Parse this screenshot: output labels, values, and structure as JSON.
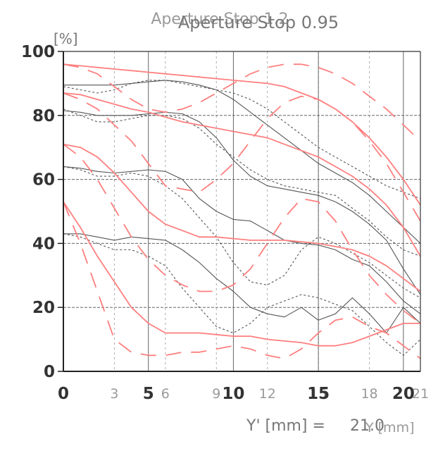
{
  "chart_data": {
    "type": "line",
    "title": "Aperture Stop 0.95",
    "title_overlay": "Aperture Stop 1.2",
    "ylabel": "[%]",
    "xlabel_prefix": "Y' [mm] =",
    "xlabel_value": "21.0",
    "xlabel_unit_overlay": "Y [mm]",
    "xlim": [
      0,
      21
    ],
    "ylim": [
      0,
      100
    ],
    "grid": true,
    "x_ticks_major": [
      0,
      5,
      10,
      15,
      20
    ],
    "x_ticks_minor": [
      3,
      6,
      9,
      12,
      15,
      18,
      21
    ],
    "y_ticks": [
      0,
      20,
      40,
      60,
      80,
      100
    ],
    "colors": {
      "primary": "#555555",
      "secondary": "#ff7f7f",
      "grid": "#666666",
      "minor_grid": "#aaaaaa"
    },
    "series": [
      {
        "group": "primary",
        "style": "solid",
        "x": [
          0,
          1,
          2,
          3,
          4,
          5,
          6,
          7,
          8,
          9,
          10,
          11,
          12,
          13,
          14,
          15,
          16,
          17,
          18,
          19,
          20,
          21
        ],
        "y": [
          89.5,
          89.5,
          89.5,
          89.5,
          90,
          90.5,
          91,
          90.5,
          89.5,
          88,
          85,
          81,
          77,
          73,
          69,
          65,
          62,
          59,
          55,
          50,
          45,
          40
        ]
      },
      {
        "group": "primary",
        "style": "dashed",
        "x": [
          0,
          1,
          2,
          3,
          4,
          5,
          6,
          7,
          8,
          9,
          10,
          11,
          12,
          13,
          14,
          15,
          16,
          17,
          18,
          19,
          20,
          21
        ],
        "y": [
          89,
          88,
          87,
          88,
          90,
          91,
          91,
          90,
          89,
          88,
          87,
          85,
          82,
          78,
          74,
          70,
          67,
          64,
          61,
          58,
          56,
          54
        ]
      },
      {
        "group": "primary",
        "style": "solid",
        "x": [
          0,
          1,
          2,
          3,
          4,
          5,
          6,
          7,
          8,
          9,
          10,
          11,
          12,
          13,
          14,
          15,
          16,
          17,
          18,
          19,
          20,
          21
        ],
        "y": [
          81.5,
          81,
          80,
          80,
          80,
          80.5,
          81,
          80.5,
          78,
          73,
          66,
          61,
          58,
          57,
          56,
          55,
          53,
          50,
          46,
          41,
          32,
          24
        ]
      },
      {
        "group": "primary",
        "style": "dashed",
        "x": [
          0,
          1,
          2,
          3,
          4,
          5,
          6,
          7,
          8,
          9,
          10,
          11,
          12,
          13,
          14,
          15,
          16,
          17,
          18,
          19,
          20,
          21
        ],
        "y": [
          82,
          80,
          78,
          78,
          79,
          80,
          80,
          79,
          76,
          71,
          67,
          63,
          60,
          58,
          57,
          56,
          55,
          51,
          47,
          42,
          38,
          36
        ]
      },
      {
        "group": "primary",
        "style": "solid",
        "x": [
          0,
          1,
          2,
          3,
          4,
          5,
          6,
          7,
          8,
          9,
          10,
          11,
          12,
          13,
          14,
          15,
          16,
          17,
          18,
          19,
          20,
          21
        ],
        "y": [
          64,
          63.5,
          62.5,
          62,
          62.5,
          63,
          62.5,
          60,
          54,
          50,
          47.5,
          47,
          44,
          41,
          40,
          39.5,
          38,
          35,
          33,
          28,
          22,
          18
        ]
      },
      {
        "group": "primary",
        "style": "dashed",
        "x": [
          0,
          1,
          2,
          3,
          4,
          5,
          6,
          7,
          8,
          9,
          10,
          11,
          12,
          13,
          14,
          15,
          16,
          17,
          18,
          19,
          20,
          21
        ],
        "y": [
          64,
          63,
          61,
          61,
          62,
          61,
          58,
          54,
          48,
          42,
          34,
          28,
          27,
          30,
          38,
          42,
          40,
          37,
          34,
          30,
          26,
          23
        ]
      },
      {
        "group": "primary",
        "style": "solid",
        "x": [
          0,
          1,
          2,
          3,
          4,
          5,
          6,
          7,
          8,
          9,
          10,
          11,
          12,
          13,
          14,
          15,
          16,
          17,
          18,
          19,
          20,
          21
        ],
        "y": [
          43,
          43,
          42,
          41,
          42,
          41.5,
          41,
          38,
          34,
          29,
          25,
          20,
          18,
          17,
          20,
          16,
          18,
          23,
          18,
          12,
          20,
          15
        ]
      },
      {
        "group": "primary",
        "style": "dashed",
        "x": [
          0,
          1,
          2,
          3,
          4,
          5,
          6,
          7,
          8,
          9,
          10,
          11,
          12,
          13,
          14,
          15,
          16,
          17,
          18,
          19,
          20,
          21
        ],
        "y": [
          43,
          42,
          40,
          38,
          38,
          36,
          33,
          26,
          20,
          14,
          12,
          15,
          20,
          22,
          24,
          23,
          21,
          19,
          14,
          9,
          5,
          10
        ]
      },
      {
        "group": "secondary",
        "style": "solid",
        "x": [
          0,
          1,
          2,
          3,
          4,
          5,
          6,
          7,
          8,
          9,
          10,
          11,
          12,
          13,
          14,
          15,
          16,
          17,
          18,
          19,
          20,
          21
        ],
        "y": [
          96,
          95.5,
          95,
          94.5,
          94,
          93.5,
          93,
          92.5,
          92,
          91.5,
          91,
          90.5,
          90,
          89,
          87,
          85,
          82,
          78,
          73,
          67,
          60,
          52
        ]
      },
      {
        "group": "secondary",
        "style": "dashed",
        "x": [
          0,
          1,
          2,
          3,
          4,
          5,
          6,
          7,
          8,
          9,
          10,
          11,
          12,
          13,
          14,
          15,
          16,
          17,
          18,
          19,
          20,
          21
        ],
        "y": [
          96,
          95,
          93,
          89,
          85,
          82,
          81,
          82,
          84,
          87,
          90,
          93,
          95,
          96,
          96,
          95,
          93,
          90,
          86,
          82,
          77,
          72
        ]
      },
      {
        "group": "secondary",
        "style": "solid",
        "x": [
          0,
          1,
          2,
          3,
          4,
          5,
          6,
          7,
          8,
          9,
          10,
          11,
          12,
          13,
          14,
          15,
          16,
          17,
          18,
          19,
          20,
          21
        ],
        "y": [
          87,
          86.5,
          85,
          83.5,
          82,
          81,
          79.5,
          78,
          77,
          76,
          75,
          74,
          73,
          71,
          69,
          67,
          64,
          61,
          57,
          52,
          45,
          36
        ]
      },
      {
        "group": "secondary",
        "style": "dashed",
        "x": [
          0,
          1,
          2,
          3,
          4,
          5,
          6,
          7,
          8,
          9,
          10,
          11,
          12,
          13,
          14,
          15,
          16,
          17,
          18,
          19,
          20,
          21
        ],
        "y": [
          87,
          85,
          82,
          77,
          72,
          65,
          58,
          57,
          56,
          60,
          65,
          72,
          79,
          84,
          86,
          85,
          82,
          78,
          72,
          65,
          56,
          47
        ]
      },
      {
        "group": "secondary",
        "style": "solid",
        "x": [
          0,
          1,
          2,
          3,
          4,
          5,
          6,
          7,
          8,
          9,
          10,
          11,
          12,
          13,
          14,
          15,
          16,
          17,
          18,
          19,
          20,
          21
        ],
        "y": [
          71,
          70,
          67,
          62,
          56,
          50,
          46,
          44,
          42,
          42,
          41.5,
          41,
          41,
          41,
          40.5,
          40,
          39,
          38,
          36,
          33,
          29,
          25
        ]
      },
      {
        "group": "secondary",
        "style": "dashed",
        "x": [
          0,
          1,
          2,
          3,
          4,
          5,
          6,
          7,
          8,
          9,
          10,
          11,
          12,
          13,
          14,
          15,
          16,
          17,
          18,
          19,
          20,
          21
        ],
        "y": [
          71,
          67,
          60,
          51,
          42,
          35,
          30,
          27,
          25,
          25,
          27,
          32,
          40,
          48,
          54,
          53,
          47,
          38,
          30,
          24,
          19,
          15
        ]
      },
      {
        "group": "secondary",
        "style": "solid",
        "x": [
          0,
          1,
          2,
          3,
          4,
          5,
          6,
          7,
          8,
          9,
          10,
          11,
          12,
          13,
          14,
          15,
          16,
          17,
          18,
          19,
          20,
          21
        ],
        "y": [
          53,
          45,
          36,
          28,
          20,
          15,
          12,
          12,
          12,
          11.5,
          11,
          11,
          10,
          9.5,
          9,
          8,
          8,
          9,
          11,
          13,
          15,
          15
        ]
      },
      {
        "group": "secondary",
        "style": "dashed",
        "x": [
          0,
          1,
          2,
          3,
          4,
          5,
          6,
          7,
          8,
          9,
          10,
          11,
          12,
          13,
          14,
          15,
          16,
          17,
          18,
          19,
          20,
          21
        ],
        "y": [
          53,
          40,
          25,
          10,
          6,
          5,
          5,
          6,
          6,
          7,
          8,
          7,
          5,
          4,
          7,
          12,
          16,
          17,
          14,
          12,
          8,
          4
        ]
      }
    ]
  }
}
